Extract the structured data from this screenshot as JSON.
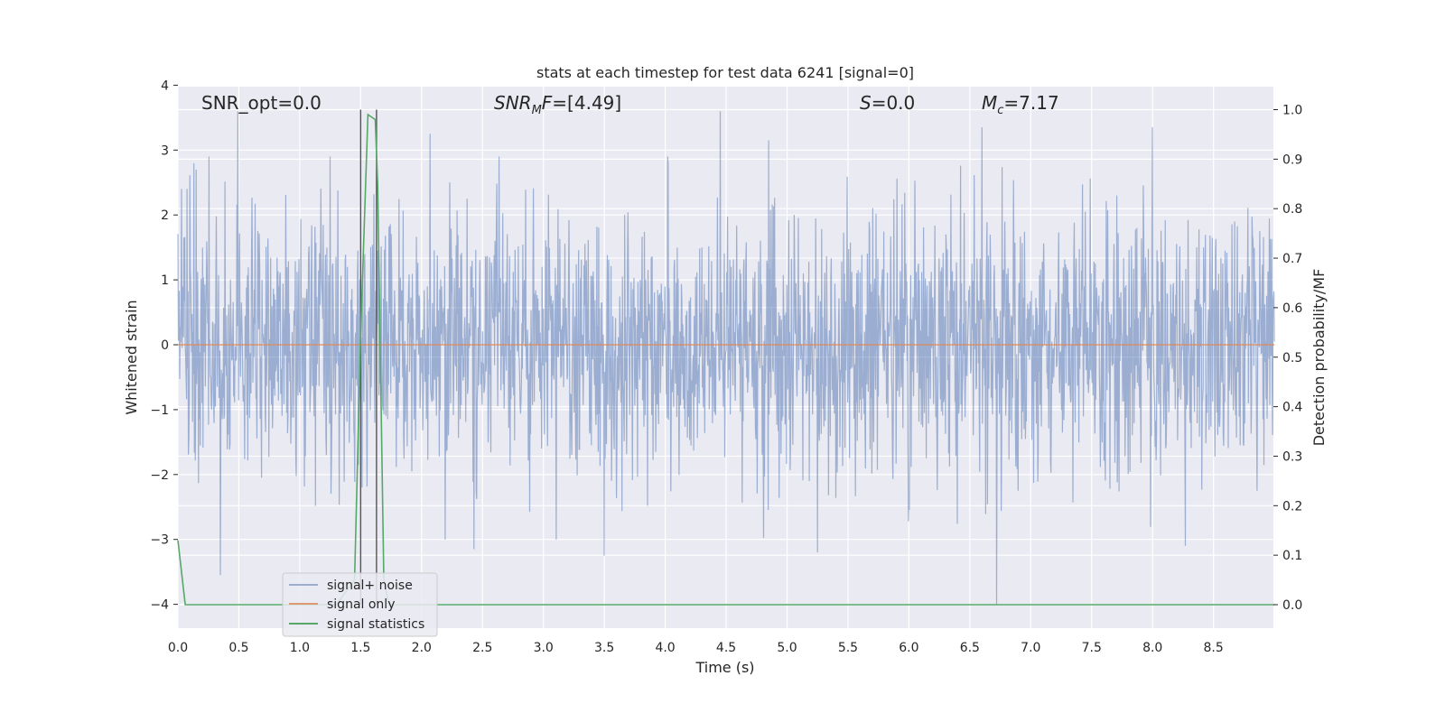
{
  "chart_data": {
    "type": "line",
    "title": "stats at each timestep for test data 6241 [signal=0]",
    "xlabel": "Time (s)",
    "ylabel": "Whitened strain",
    "y2label": "Detection probability/MF",
    "xlim": [
      0.0,
      9.0
    ],
    "ylim": [
      -4.35,
      4.0
    ],
    "y2lim": [
      -0.05,
      1.05
    ],
    "x_ticks": [
      0.0,
      0.5,
      1.0,
      1.5,
      2.0,
      2.5,
      3.0,
      3.5,
      4.0,
      4.5,
      5.0,
      5.5,
      6.0,
      6.5,
      7.0,
      7.5,
      8.0,
      8.5
    ],
    "x_tick_labels": [
      "0.0",
      "0.5",
      "1.0",
      "1.5",
      "2.0",
      "2.5",
      "3.0",
      "3.5",
      "4.0",
      "4.5",
      "5.0",
      "5.5",
      "6.0",
      "6.5",
      "7.0",
      "7.5",
      "8.0",
      "8.5"
    ],
    "y_ticks": [
      4,
      3,
      2,
      1,
      0,
      -1,
      -2,
      -3,
      -4
    ],
    "y_tick_labels": [
      "4",
      "3",
      "2",
      "1",
      "0",
      "−1",
      "−2",
      "−3",
      "−4"
    ],
    "y2_ticks": [
      1.0,
      0.9,
      0.8,
      0.7,
      0.6,
      0.5,
      0.4,
      0.3,
      0.2,
      0.1,
      0.0
    ],
    "y2_tick_labels": [
      "1.0",
      "0.9",
      "0.8",
      "0.7",
      "0.6",
      "0.5",
      "0.4",
      "0.3",
      "0.2",
      "0.1",
      "0.0"
    ],
    "grid": true,
    "legend_position": "lower-left",
    "series": [
      {
        "name": "signal+ noise",
        "color": "#4c72b0",
        "axis": "left",
        "noise_sigma": 1.0,
        "noise_peaks": [
          {
            "x": 0.03,
            "y": 2.4
          },
          {
            "x": 0.15,
            "y": 2.7
          },
          {
            "x": 0.35,
            "y": -3.55
          },
          {
            "x": 0.49,
            "y": 3.6
          },
          {
            "x": 1.25,
            "y": 2.9
          },
          {
            "x": 2.07,
            "y": 3.25
          },
          {
            "x": 2.43,
            "y": -3.15
          },
          {
            "x": 3.5,
            "y": -3.25
          },
          {
            "x": 4.45,
            "y": 3.6
          },
          {
            "x": 4.85,
            "y": 3.15
          },
          {
            "x": 5.25,
            "y": -3.2
          },
          {
            "x": 6.6,
            "y": 3.35
          },
          {
            "x": 6.72,
            "y": -4.0
          },
          {
            "x": 8.0,
            "y": 3.35
          },
          {
            "x": 8.27,
            "y": -3.1
          }
        ]
      },
      {
        "name": "signal only",
        "color": "#dd8452",
        "axis": "left",
        "x": [
          0.0,
          9.0
        ],
        "y": [
          0.0,
          0.0
        ]
      },
      {
        "name": "signal statistics",
        "color": "#55a868",
        "axis": "right",
        "x": [
          0.0,
          0.06,
          0.1,
          0.15,
          1.3,
          1.45,
          1.5,
          1.56,
          1.62,
          1.64,
          1.69,
          1.73,
          1.8,
          9.0
        ],
        "y": [
          0.13,
          0.0,
          0.0,
          0.0,
          0.0,
          0.05,
          0.55,
          0.99,
          0.98,
          0.85,
          0.05,
          0.0,
          0.0,
          0.0
        ]
      }
    ],
    "vlines": [
      {
        "x": 1.5,
        "color": "#555555"
      },
      {
        "x": 1.63,
        "color": "#555555"
      }
    ],
    "annotations": [
      {
        "id": "snr-opt",
        "text": "SNR_opt=0.0",
        "x": 0.2,
        "y2": 1.0
      },
      {
        "id": "snr-mf",
        "text": "=[4.49]",
        "x": 2.6,
        "y2": 1.0
      },
      {
        "id": "s-stat",
        "text": "=0.0",
        "x": 5.62,
        "y2": 1.0
      },
      {
        "id": "mc",
        "text": "=7.17",
        "x": 6.62,
        "y2": 1.0
      }
    ]
  }
}
